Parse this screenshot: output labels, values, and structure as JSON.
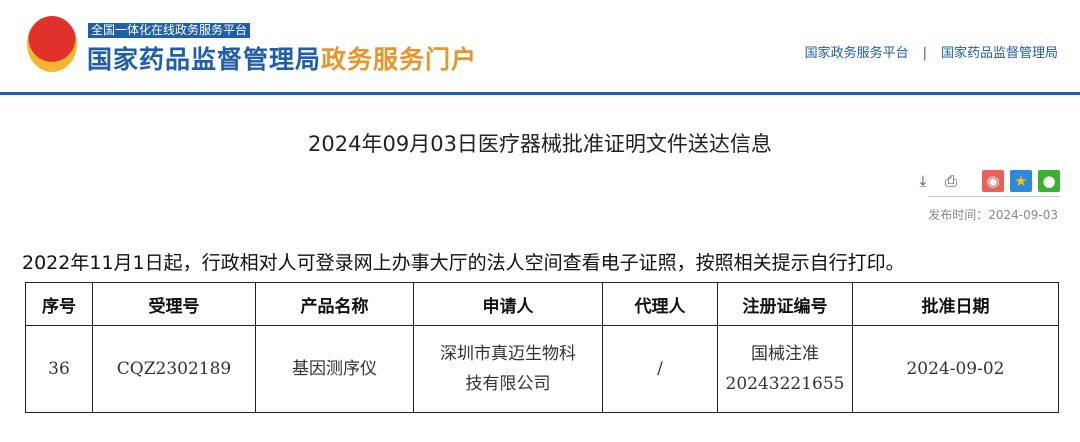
{
  "header": {
    "subtitle": "全国一体化在线政务服务平台",
    "title_blue": "国家药品监督管理局",
    "title_orange": "政务服务门户",
    "links": [
      "国家政务服务平台",
      "国家药品监督管理局"
    ],
    "separator": "|"
  },
  "article": {
    "title": "2024年09月03日医疗器械批准证明文件送达信息",
    "publish_label": "发布时间：",
    "publish_date": "2024-09-03",
    "notice": "2022年11月1日起，行政相对人可登录网上办事大厅的法人空间查看电子证照，按照相关提示自行打印。"
  },
  "tools": {
    "icons": [
      "download-icon",
      "print-icon",
      "weibo-icon",
      "qzone-icon",
      "wechat-icon"
    ]
  },
  "table": {
    "headers": [
      "序号",
      "受理号",
      "产品名称",
      "申请人",
      "代理人",
      "注册证编号",
      "批准日期"
    ],
    "rows": [
      {
        "no": "36",
        "accept": "CQZ2302189",
        "product": "基因测序仪",
        "applicant_1": "深圳市真迈生物科",
        "applicant_2": "技有限公司",
        "agent": "/",
        "reg_1": "国械注准",
        "reg_2": "20243221655",
        "date": "2024-09-02"
      }
    ]
  }
}
